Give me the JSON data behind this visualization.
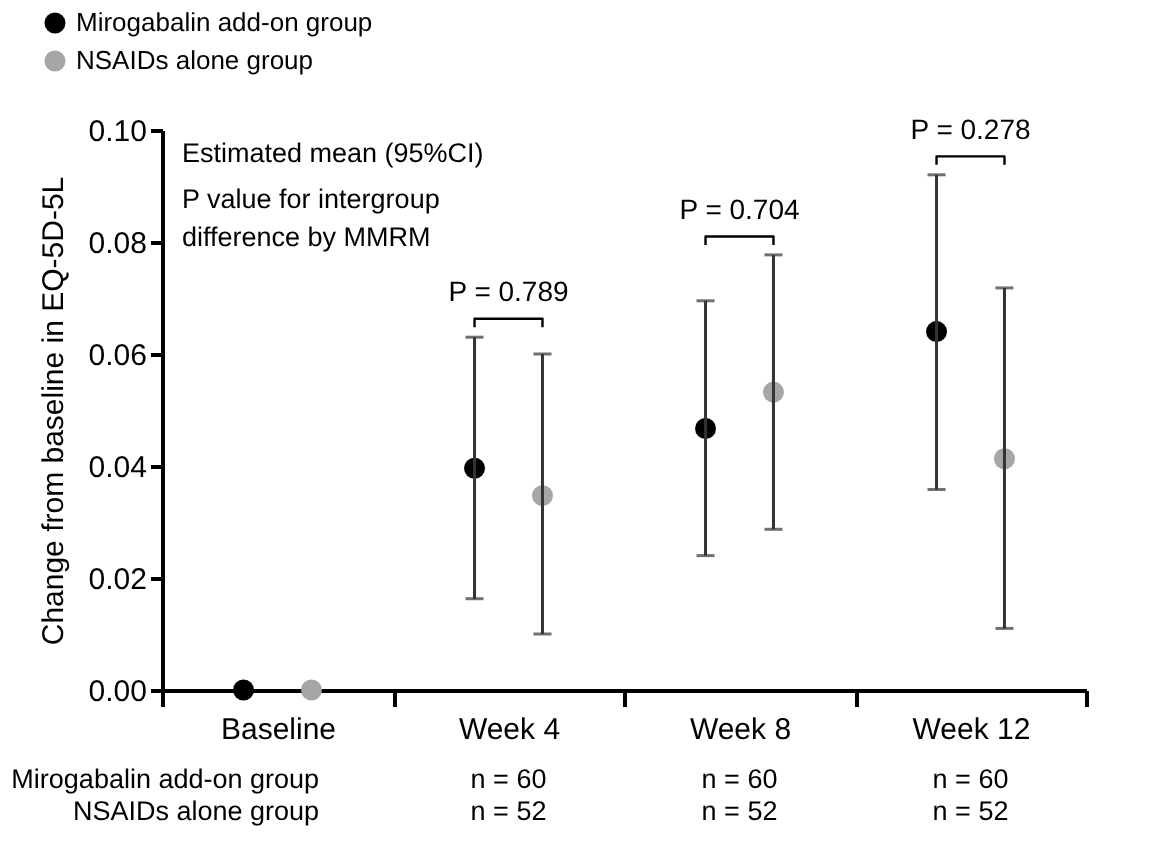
{
  "chart_data": {
    "type": "scatter",
    "ylabel": "Change from baseline in EQ-5D-5L",
    "categories": [
      "Baseline",
      "Week 4",
      "Week 8",
      "Week 12"
    ],
    "series": [
      {
        "name": "Mirogabalin add-on group",
        "color": "#000000",
        "values": [
          0,
          0.0396,
          0.0467,
          0.064
        ],
        "errors": [
          null,
          [
            0.0163,
            0.063
          ],
          [
            0.024,
            0.0695
          ],
          [
            0.0358,
            0.092
          ]
        ]
      },
      {
        "name": "NSAIDs alone group",
        "color": "#a6a6a6",
        "values": [
          0,
          0.0347,
          0.0532,
          0.0413
        ],
        "errors": [
          null,
          [
            0.01,
            0.06
          ],
          [
            0.0287,
            0.0777
          ],
          [
            0.011,
            0.0718
          ]
        ]
      }
    ],
    "ylim": [
      0,
      0.1
    ],
    "yticks": [
      {
        "value": 0,
        "label": "0.00"
      },
      {
        "value": 0.02,
        "label": "0.02"
      },
      {
        "value": 0.04,
        "label": "0.04"
      },
      {
        "value": 0.06,
        "label": "0.06"
      },
      {
        "value": 0.08,
        "label": "0.08"
      },
      {
        "value": 0.1,
        "label": "0.10"
      }
    ],
    "marker": "circle",
    "legend": "top left",
    "annotations": [
      "Estimated mean (95%CI)",
      "P value for intergroup",
      "difference by MMRM",
      "P = 0.789",
      "P = 0.704",
      "P = 0.278",
      "Mirogabalin add-on group",
      "n = 60",
      "n = 60",
      "n = 60",
      "NSAIDs alone group",
      "n = 52",
      "n = 52",
      "n = 52"
    ]
  }
}
